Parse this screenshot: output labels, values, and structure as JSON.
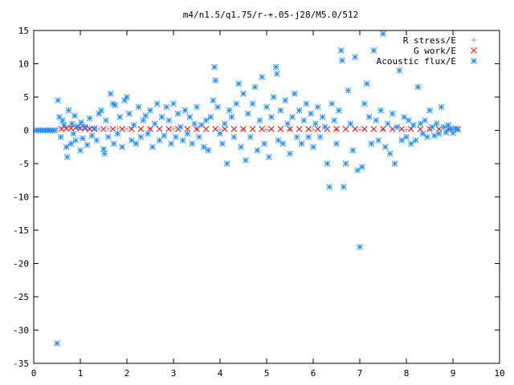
{
  "chart_data": {
    "type": "scatter",
    "title": "m4/n1.5/q1.75/r-+.05-j28/M5.0/512",
    "xlabel": "",
    "ylabel": "",
    "xlim": [
      0,
      10
    ],
    "ylim": [
      -35,
      15
    ],
    "xticks": [
      0,
      1,
      2,
      3,
      4,
      5,
      6,
      7,
      8,
      9,
      10
    ],
    "yticks": [
      -35,
      -30,
      -25,
      -20,
      -15,
      -10,
      -5,
      0,
      5,
      10,
      15
    ],
    "grid": false,
    "legend_position": "top-right",
    "series": [
      {
        "name": "R stress/E",
        "marker": "plus",
        "color": "#a0a0a0",
        "points": [
          [
            0.3,
            0.1
          ],
          [
            0.5,
            0.2
          ],
          [
            0.7,
            0.4
          ],
          [
            0.8,
            0.6
          ],
          [
            0.9,
            0.8
          ],
          [
            1.0,
            0.9
          ],
          [
            1.1,
            0.7
          ],
          [
            1.2,
            0.4
          ],
          [
            1.4,
            0.2
          ],
          [
            1.6,
            0.2
          ],
          [
            1.8,
            0.3
          ],
          [
            2.0,
            0.2
          ],
          [
            2.5,
            0.2
          ],
          [
            3.0,
            0.2
          ],
          [
            3.5,
            0.2
          ],
          [
            4.0,
            0.1
          ],
          [
            4.5,
            0.1
          ],
          [
            5.0,
            0.1
          ],
          [
            5.5,
            0.1
          ],
          [
            6.0,
            0.1
          ],
          [
            6.5,
            0.1
          ],
          [
            7.0,
            0.1
          ],
          [
            7.5,
            0.1
          ],
          [
            8.0,
            0.1
          ],
          [
            8.5,
            0.1
          ],
          [
            9.0,
            0.1
          ]
        ]
      },
      {
        "name": "G work/E",
        "marker": "cross",
        "color": "#ff0000",
        "points": [
          [
            0.6,
            0.2
          ],
          [
            0.7,
            0.3
          ],
          [
            0.8,
            0.3
          ],
          [
            0.9,
            0.4
          ],
          [
            1.0,
            0.3
          ],
          [
            1.1,
            0.3
          ],
          [
            1.2,
            0.2
          ],
          [
            1.3,
            0.2
          ],
          [
            1.5,
            0.2
          ],
          [
            1.7,
            0.2
          ],
          [
            1.9,
            0.2
          ],
          [
            2.1,
            0.2
          ],
          [
            2.3,
            0.2
          ],
          [
            2.5,
            0.2
          ],
          [
            2.7,
            0.2
          ],
          [
            2.9,
            0.2
          ],
          [
            3.1,
            0.2
          ],
          [
            3.3,
            0.2
          ],
          [
            3.5,
            0.2
          ],
          [
            3.7,
            0.2
          ],
          [
            3.9,
            0.2
          ],
          [
            4.1,
            0.2
          ],
          [
            4.3,
            0.2
          ],
          [
            4.5,
            0.2
          ],
          [
            4.7,
            0.2
          ],
          [
            4.9,
            0.2
          ],
          [
            5.1,
            0.2
          ],
          [
            5.3,
            0.2
          ],
          [
            5.5,
            0.2
          ],
          [
            5.7,
            0.2
          ],
          [
            5.9,
            0.2
          ],
          [
            6.1,
            0.2
          ],
          [
            6.3,
            0.2
          ],
          [
            6.5,
            0.2
          ],
          [
            6.7,
            0.2
          ],
          [
            6.9,
            0.2
          ],
          [
            7.1,
            0.2
          ],
          [
            7.3,
            0.2
          ],
          [
            7.5,
            0.2
          ],
          [
            7.7,
            0.2
          ],
          [
            7.9,
            0.2
          ],
          [
            8.1,
            0.2
          ],
          [
            8.3,
            0.2
          ],
          [
            8.5,
            0.2
          ],
          [
            8.7,
            0.2
          ],
          [
            8.9,
            0.2
          ],
          [
            9.1,
            0.2
          ]
        ]
      },
      {
        "name": "Acoustic flux/E",
        "marker": "star",
        "color": "#1e90ff",
        "points": [
          [
            0.5,
            -32.0
          ],
          [
            0.52,
            4.5
          ],
          [
            0.55,
            2.0
          ],
          [
            0.58,
            -1.0
          ],
          [
            0.62,
            1.5
          ],
          [
            0.65,
            0.8
          ],
          [
            0.7,
            -2.5
          ],
          [
            0.72,
            -4.0
          ],
          [
            0.75,
            3.0
          ],
          [
            0.8,
            -2.0
          ],
          [
            0.82,
            1.0
          ],
          [
            0.85,
            -0.5
          ],
          [
            0.88,
            2.2
          ],
          [
            0.9,
            -1.5
          ],
          [
            0.95,
            0.5
          ],
          [
            1.0,
            -3.0
          ],
          [
            1.02,
            1.2
          ],
          [
            1.05,
            -1.2
          ],
          [
            1.1,
            0.5
          ],
          [
            1.15,
            -2.2
          ],
          [
            1.2,
            1.8
          ],
          [
            1.25,
            -0.8
          ],
          [
            1.3,
            0.3
          ],
          [
            1.35,
            -1.5
          ],
          [
            1.4,
            2.5
          ],
          [
            1.45,
            3.0
          ],
          [
            1.5,
            -2.8
          ],
          [
            1.52,
            -3.5
          ],
          [
            1.55,
            1.5
          ],
          [
            1.6,
            -1.0
          ],
          [
            1.65,
            5.5
          ],
          [
            1.7,
            4.0
          ],
          [
            1.72,
            -2.0
          ],
          [
            1.75,
            3.8
          ],
          [
            1.8,
            -0.5
          ],
          [
            1.85,
            2.0
          ],
          [
            1.9,
            -2.5
          ],
          [
            1.95,
            4.5
          ],
          [
            2.0,
            5.0
          ],
          [
            2.05,
            2.5
          ],
          [
            2.1,
            -1.5
          ],
          [
            2.15,
            0.8
          ],
          [
            2.2,
            -2.0
          ],
          [
            2.25,
            3.5
          ],
          [
            2.3,
            -1.0
          ],
          [
            2.35,
            1.5
          ],
          [
            2.4,
            2.2
          ],
          [
            2.45,
            -0.5
          ],
          [
            2.5,
            3.0
          ],
          [
            2.55,
            -2.5
          ],
          [
            2.6,
            1.0
          ],
          [
            2.65,
            4.0
          ],
          [
            2.7,
            -1.5
          ],
          [
            2.75,
            2.0
          ],
          [
            2.8,
            -0.8
          ],
          [
            2.85,
            3.5
          ],
          [
            2.9,
            1.5
          ],
          [
            2.95,
            -2.0
          ],
          [
            3.0,
            4.0
          ],
          [
            3.05,
            -1.0
          ],
          [
            3.1,
            2.5
          ],
          [
            3.15,
            0.5
          ],
          [
            3.2,
            -1.5
          ],
          [
            3.25,
            3.0
          ],
          [
            3.3,
            -0.5
          ],
          [
            3.35,
            2.0
          ],
          [
            3.4,
            -2.0
          ],
          [
            3.45,
            1.0
          ],
          [
            3.5,
            3.5
          ],
          [
            3.55,
            -1.0
          ],
          [
            3.6,
            0.8
          ],
          [
            3.65,
            -2.5
          ],
          [
            3.7,
            1.5
          ],
          [
            3.75,
            -3.0
          ],
          [
            3.8,
            2.0
          ],
          [
            3.85,
            4.5
          ],
          [
            3.88,
            9.5
          ],
          [
            3.9,
            7.5
          ],
          [
            3.95,
            3.5
          ],
          [
            4.0,
            -0.5
          ],
          [
            4.05,
            -2.0
          ],
          [
            4.1,
            1.0
          ],
          [
            4.15,
            -5.0
          ],
          [
            4.2,
            3.0
          ],
          [
            4.25,
            2.0
          ],
          [
            4.3,
            -1.0
          ],
          [
            4.35,
            4.0
          ],
          [
            4.4,
            7.0
          ],
          [
            4.45,
            -2.5
          ],
          [
            4.5,
            5.5
          ],
          [
            4.55,
            -4.5
          ],
          [
            4.6,
            2.5
          ],
          [
            4.65,
            -1.0
          ],
          [
            4.7,
            4.0
          ],
          [
            4.75,
            6.5
          ],
          [
            4.8,
            -3.0
          ],
          [
            4.85,
            1.5
          ],
          [
            4.9,
            8.0
          ],
          [
            4.95,
            -2.0
          ],
          [
            5.0,
            3.5
          ],
          [
            5.05,
            -4.0
          ],
          [
            5.1,
            2.0
          ],
          [
            5.15,
            5.0
          ],
          [
            5.2,
            9.5
          ],
          [
            5.22,
            8.5
          ],
          [
            5.25,
            -1.5
          ],
          [
            5.3,
            3.0
          ],
          [
            5.35,
            -2.0
          ],
          [
            5.4,
            4.5
          ],
          [
            5.45,
            1.0
          ],
          [
            5.5,
            -3.5
          ],
          [
            5.55,
            2.0
          ],
          [
            5.6,
            5.5
          ],
          [
            5.65,
            -1.0
          ],
          [
            5.7,
            3.0
          ],
          [
            5.75,
            -2.0
          ],
          [
            5.8,
            1.5
          ],
          [
            5.85,
            4.0
          ],
          [
            5.9,
            -1.0
          ],
          [
            5.95,
            2.5
          ],
          [
            6.0,
            -2.5
          ],
          [
            6.05,
            1.0
          ],
          [
            6.1,
            3.5
          ],
          [
            6.15,
            -1.0
          ],
          [
            6.2,
            2.0
          ],
          [
            6.25,
            0.5
          ],
          [
            6.3,
            -5.0
          ],
          [
            6.35,
            -8.5
          ],
          [
            6.4,
            4.0
          ],
          [
            6.45,
            1.5
          ],
          [
            6.5,
            -2.0
          ],
          [
            6.55,
            3.0
          ],
          [
            6.6,
            12.0
          ],
          [
            6.62,
            10.5
          ],
          [
            6.65,
            -8.5
          ],
          [
            6.7,
            -5.0
          ],
          [
            6.75,
            6.0
          ],
          [
            6.8,
            1.0
          ],
          [
            6.85,
            -3.0
          ],
          [
            6.9,
            11.0
          ],
          [
            6.95,
            -6.0
          ],
          [
            7.0,
            -17.5
          ],
          [
            7.05,
            -5.5
          ],
          [
            7.1,
            4.0
          ],
          [
            7.15,
            7.0
          ],
          [
            7.2,
            2.0
          ],
          [
            7.25,
            -2.0
          ],
          [
            7.3,
            12.0
          ],
          [
            7.35,
            1.5
          ],
          [
            7.4,
            -1.5
          ],
          [
            7.45,
            3.0
          ],
          [
            7.5,
            14.5
          ],
          [
            7.55,
            -2.5
          ],
          [
            7.6,
            1.0
          ],
          [
            7.65,
            -3.5
          ],
          [
            7.7,
            2.5
          ],
          [
            7.75,
            -5.0
          ],
          [
            7.8,
            0.5
          ],
          [
            7.85,
            9.0
          ],
          [
            7.9,
            -1.5
          ],
          [
            7.95,
            2.0
          ],
          [
            8.0,
            -1.0
          ],
          [
            8.05,
            1.5
          ],
          [
            8.1,
            -2.0
          ],
          [
            8.15,
            0.8
          ],
          [
            8.2,
            -1.5
          ],
          [
            8.25,
            6.5
          ],
          [
            8.3,
            1.0
          ],
          [
            8.35,
            -0.5
          ],
          [
            8.4,
            1.5
          ],
          [
            8.45,
            -1.0
          ],
          [
            8.5,
            3.0
          ],
          [
            8.55,
            0.5
          ],
          [
            8.6,
            -0.8
          ],
          [
            8.65,
            1.0
          ],
          [
            8.7,
            -0.5
          ],
          [
            8.75,
            3.5
          ],
          [
            8.8,
            0.5
          ],
          [
            8.85,
            -0.3
          ],
          [
            8.9,
            0.8
          ],
          [
            8.95,
            0.2
          ],
          [
            9.0,
            -0.4
          ],
          [
            9.05,
            0.3
          ],
          [
            9.1,
            0.1
          ],
          [
            0.05,
            0.0
          ],
          [
            0.1,
            0.0
          ],
          [
            0.15,
            0.0
          ],
          [
            0.2,
            0.0
          ],
          [
            0.25,
            0.0
          ],
          [
            0.3,
            0.0
          ],
          [
            0.35,
            0.0
          ],
          [
            0.4,
            0.0
          ],
          [
            0.45,
            0.0
          ]
        ]
      }
    ]
  }
}
